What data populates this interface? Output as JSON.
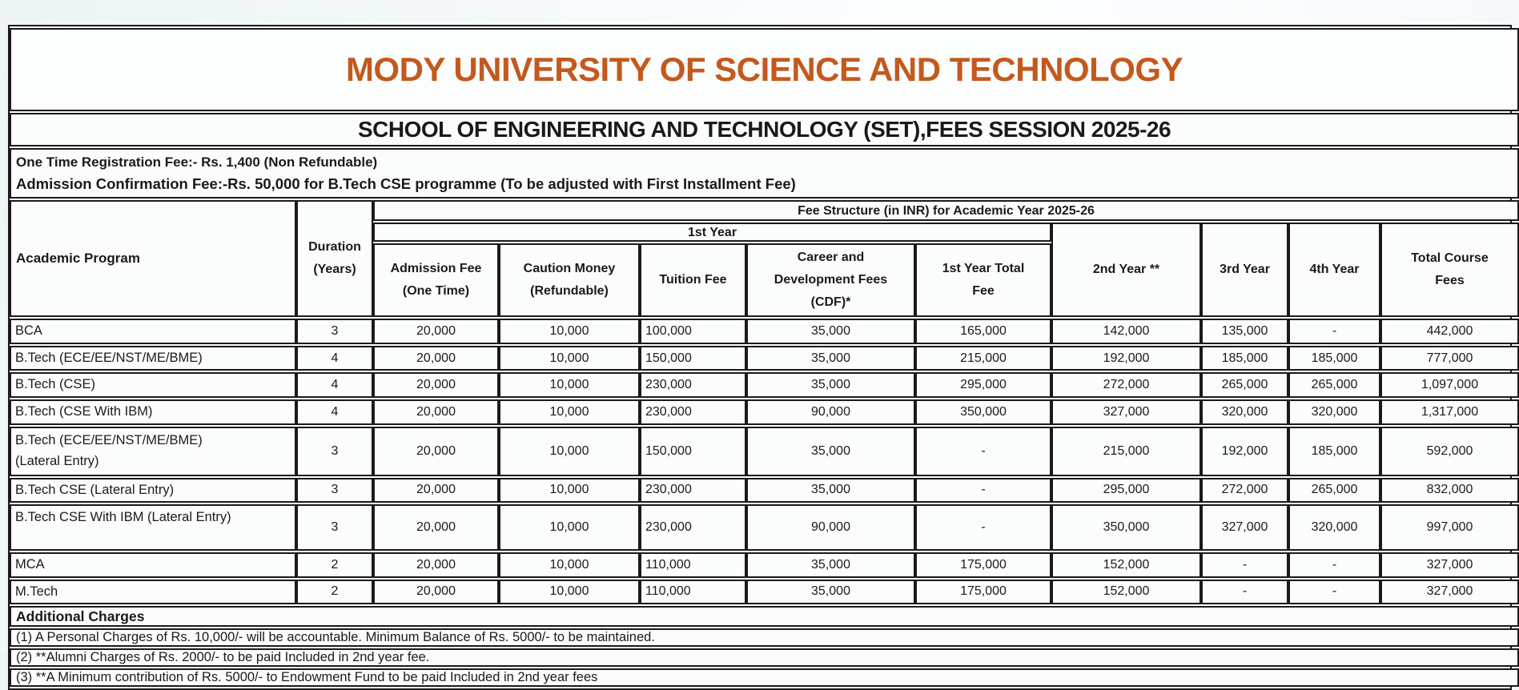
{
  "colors": {
    "accent_title": "#c4591d",
    "text": "#1a1a1a",
    "border": "#1a1a1a",
    "page_background": "#f4f8f9"
  },
  "banner": {
    "university_title": "MODY UNIVERSITY OF SCIENCE AND TECHNOLOGY",
    "school_line": "SCHOOL OF ENGINEERING AND TECHNOLOGY (SET),FEES SESSION 2025-26",
    "registration_line": "One Time Registration Fee:- Rs. 1,400 (Non Refundable)",
    "confirmation_line": "Admission Confirmation Fee:-Rs. 50,000 for B.Tech CSE programme (To be adjusted with First Installment Fee)"
  },
  "fee_table": {
    "corner": {
      "program": "Academic Program",
      "duration": "Duration\n(Years)"
    },
    "group_headers": {
      "fee_structure": "Fee Structure (in INR) for Academic Year 2025-26",
      "first_year": "1st Year"
    },
    "sub_columns": [
      "Admission Fee\n(One Time)",
      "Caution Money\n(Refundable)",
      "Tuition Fee",
      "Career and\nDevelopment Fees\n(CDF)*",
      "1st Year Total\nFee"
    ],
    "year_columns": [
      "2nd Year **",
      "3rd Year",
      "4th Year",
      "Total Course\nFees"
    ],
    "rows": [
      {
        "program": "BCA",
        "duration": "3",
        "admission": "20,000",
        "caution": "10,000",
        "tuition": "100,000",
        "cdf": "35,000",
        "first_year_total": "165,000",
        "second_year": "142,000",
        "third_year": "135,000",
        "fourth_year": "-",
        "total": "442,000"
      },
      {
        "program": "B.Tech (ECE/EE/NST/ME/BME)",
        "duration": "4",
        "admission": "20,000",
        "caution": "10,000",
        "tuition": "150,000",
        "cdf": "35,000",
        "first_year_total": "215,000",
        "second_year": "192,000",
        "third_year": "185,000",
        "fourth_year": "185,000",
        "total": "777,000"
      },
      {
        "program": "B.Tech (CSE)",
        "duration": "4",
        "admission": "20,000",
        "caution": "10,000",
        "tuition": "230,000",
        "cdf": "35,000",
        "first_year_total": "295,000",
        "second_year": "272,000",
        "third_year": "265,000",
        "fourth_year": "265,000",
        "total": "1,097,000"
      },
      {
        "program": "B.Tech (CSE With IBM)",
        "duration": "4",
        "admission": "20,000",
        "caution": "10,000",
        "tuition": "230,000",
        "cdf": "90,000",
        "first_year_total": "350,000",
        "second_year": "327,000",
        "third_year": "320,000",
        "fourth_year": "320,000",
        "total": "1,317,000"
      },
      {
        "program": "B.Tech (ECE/EE/NST/ME/BME)\n(Lateral Entry)",
        "duration": "3",
        "admission": "20,000",
        "caution": "10,000",
        "tuition": "150,000",
        "cdf": "35,000",
        "first_year_total": "-",
        "second_year": "215,000",
        "third_year": "192,000",
        "fourth_year": "185,000",
        "total": "592,000"
      },
      {
        "program": "B.Tech CSE (Lateral Entry)",
        "duration": "3",
        "admission": "20,000",
        "caution": "10,000",
        "tuition": "230,000",
        "cdf": "35,000",
        "first_year_total": "-",
        "second_year": "295,000",
        "third_year": "272,000",
        "fourth_year": "265,000",
        "total": "832,000"
      },
      {
        "program": "B.Tech CSE With IBM (Lateral Entry)",
        "duration": "3",
        "admission": "20,000",
        "caution": "10,000",
        "tuition": "230,000",
        "cdf": "90,000",
        "first_year_total": "-",
        "second_year": "350,000",
        "third_year": "327,000",
        "fourth_year": "320,000",
        "total": "997,000"
      },
      {
        "program": "MCA",
        "duration": "2",
        "admission": "20,000",
        "caution": "10,000",
        "tuition": "110,000",
        "cdf": "35,000",
        "first_year_total": "175,000",
        "second_year": "152,000",
        "third_year": "-",
        "fourth_year": "-",
        "total": "327,000"
      },
      {
        "program": "M.Tech",
        "duration": "2",
        "admission": "20,000",
        "caution": "10,000",
        "tuition": "110,000",
        "cdf": "35,000",
        "first_year_total": "175,000",
        "second_year": "152,000",
        "third_year": "-",
        "fourth_year": "-",
        "total": "327,000"
      }
    ]
  },
  "additional_charges": {
    "heading": "Additional Charges",
    "notes": [
      "(1) A Personal Charges of Rs. 10,000/- will be accountable. Minimum Balance of Rs. 5000/- to be maintained.",
      "(2) **Alumni Charges of Rs. 2000/- to be paid Included in 2nd year fee.",
      "(3) **A Minimum contribution of Rs. 5000/- to Endowment Fund to be paid Included in 2nd year fees"
    ]
  }
}
